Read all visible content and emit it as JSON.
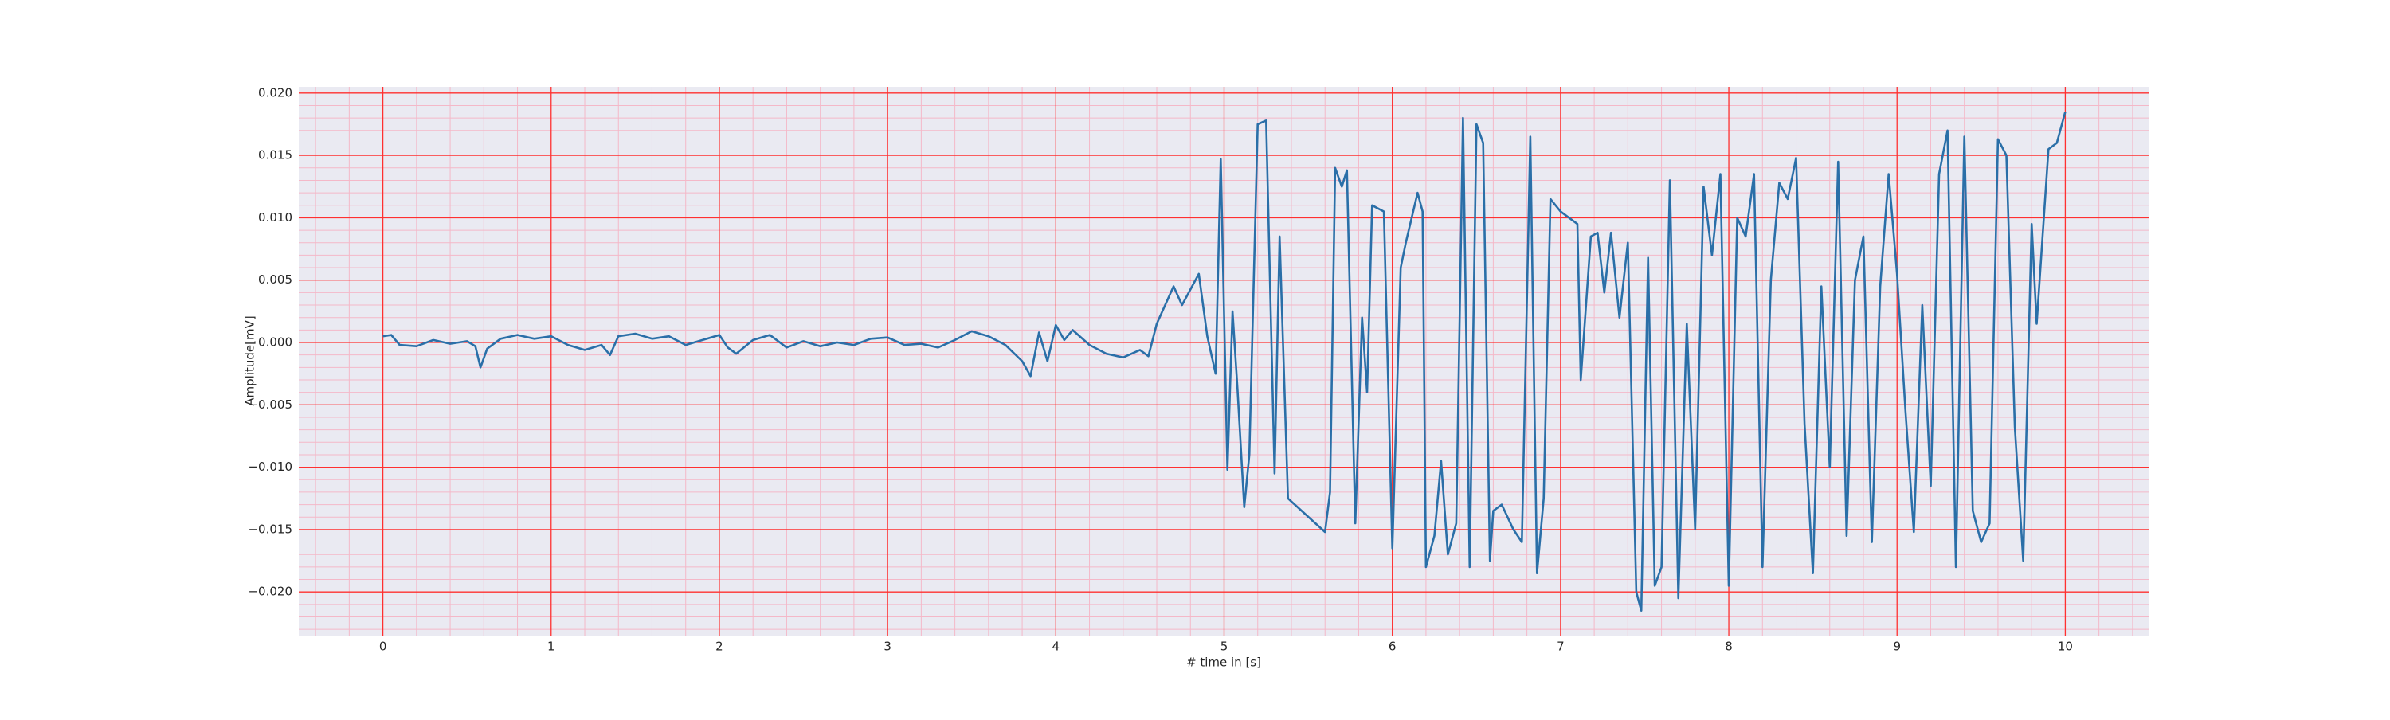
{
  "chart_data": {
    "type": "line",
    "xlabel": "# time in [s]",
    "ylabel": "Amplitude[mV]",
    "xlim": [
      -0.5,
      10.5
    ],
    "ylim": [
      -0.0235,
      0.0205
    ],
    "xticks": [
      0,
      1,
      2,
      3,
      4,
      5,
      6,
      7,
      8,
      9,
      10
    ],
    "yticks": [
      {
        "value": -0.02,
        "label": "−0.020"
      },
      {
        "value": -0.015,
        "label": "−0.015"
      },
      {
        "value": -0.01,
        "label": "−0.010"
      },
      {
        "value": -0.005,
        "label": "−0.005"
      },
      {
        "value": 0,
        "label": "0.000"
      },
      {
        "value": 0.005,
        "label": "0.005"
      },
      {
        "value": 0.01,
        "label": "0.010"
      },
      {
        "value": 0.015,
        "label": "0.015"
      },
      {
        "value": 0.02,
        "label": "0.020"
      }
    ],
    "xminorticks": [
      -0.4,
      -0.2,
      0.2,
      0.4,
      0.6,
      0.8,
      1.2,
      1.4,
      1.6,
      1.8,
      2.2,
      2.4,
      2.6,
      2.8,
      3.2,
      3.4,
      3.6,
      3.8,
      4.2,
      4.4,
      4.6,
      4.8,
      5.2,
      5.4,
      5.6,
      5.8,
      6.2,
      6.4,
      6.6,
      6.8,
      7.2,
      7.4,
      7.6,
      7.8,
      8.2,
      8.4,
      8.6,
      8.8,
      9.2,
      9.4,
      9.6,
      9.8,
      10.2,
      10.4
    ],
    "yminorticks": [
      -0.023,
      -0.022,
      -0.021,
      -0.019,
      -0.018,
      -0.017,
      -0.016,
      -0.014,
      -0.013,
      -0.012,
      -0.011,
      -0.009,
      -0.008,
      -0.007,
      -0.006,
      -0.004,
      -0.003,
      -0.002,
      -0.001,
      0.001,
      0.002,
      0.003,
      0.004,
      0.006,
      0.007,
      0.008,
      0.009,
      0.011,
      0.012,
      0.013,
      0.014,
      0.016,
      0.017,
      0.018,
      0.019
    ],
    "grid": true,
    "background": "#eaeaf2",
    "major_grid_color": "#ff3030",
    "minor_grid_color": "#f4b8c8",
    "x": [
      0,
      0.05,
      0.1,
      0.2,
      0.3,
      0.4,
      0.5,
      0.55,
      0.58,
      0.62,
      0.7,
      0.8,
      0.9,
      1.0,
      1.1,
      1.2,
      1.3,
      1.35,
      1.4,
      1.5,
      1.6,
      1.7,
      1.8,
      1.9,
      2.0,
      2.05,
      2.1,
      2.2,
      2.3,
      2.4,
      2.5,
      2.6,
      2.7,
      2.8,
      2.9,
      3.0,
      3.1,
      3.2,
      3.3,
      3.4,
      3.5,
      3.6,
      3.7,
      3.8,
      3.85,
      3.9,
      3.95,
      4.0,
      4.05,
      4.1,
      4.2,
      4.3,
      4.4,
      4.5,
      4.55,
      4.6,
      4.7,
      4.75,
      4.85,
      4.9,
      4.95,
      4.98,
      5.02,
      5.05,
      5.08,
      5.12,
      5.15,
      5.2,
      5.25,
      5.3,
      5.33,
      5.38,
      5.6,
      5.63,
      5.66,
      5.7,
      5.73,
      5.78,
      5.82,
      5.85,
      5.88,
      5.95,
      6.0,
      6.05,
      6.08,
      6.15,
      6.18,
      6.2,
      6.25,
      6.29,
      6.33,
      6.38,
      6.42,
      6.46,
      6.5,
      6.54,
      6.58,
      6.6,
      6.65,
      6.72,
      6.77,
      6.82,
      6.86,
      6.9,
      6.94,
      7.0,
      7.1,
      7.12,
      7.18,
      7.22,
      7.26,
      7.3,
      7.35,
      7.4,
      7.45,
      7.48,
      7.52,
      7.56,
      7.6,
      7.65,
      7.7,
      7.75,
      7.8,
      7.85,
      7.9,
      7.95,
      8.0,
      8.05,
      8.1,
      8.15,
      8.2,
      8.25,
      8.3,
      8.35,
      8.4,
      8.45,
      8.5,
      8.55,
      8.6,
      8.65,
      8.7,
      8.75,
      8.8,
      8.85,
      8.9,
      8.95,
      9.0,
      9.05,
      9.1,
      9.15,
      9.2,
      9.25,
      9.3,
      9.35,
      9.4,
      9.45,
      9.5,
      9.55,
      9.6,
      9.65,
      9.7,
      9.75,
      9.8,
      9.83,
      9.9,
      9.95,
      10.0
    ],
    "series": [
      {
        "color": "#2a6fa8",
        "values": [
          0.0005,
          0.0006,
          -0.0002,
          -0.0003,
          0.0002,
          -0.0001,
          0.0001,
          -0.0003,
          -0.002,
          -0.0005,
          0.0003,
          0.0006,
          0.0003,
          0.0005,
          -0.0002,
          -0.0006,
          -0.0002,
          -0.001,
          0.0005,
          0.0007,
          0.0003,
          0.0005,
          -0.0002,
          0.0002,
          0.0006,
          -0.0004,
          -0.0009,
          0.0002,
          0.0006,
          -0.0004,
          0.0001,
          -0.0003,
          0,
          -0.0002,
          0.0003,
          0.0004,
          -0.0002,
          -0.0001,
          -0.0004,
          0.0002,
          0.0009,
          0.0005,
          -0.0002,
          -0.0015,
          -0.0027,
          0.0008,
          -0.0015,
          0.0014,
          0.0002,
          0.001,
          -0.0002,
          -0.0009,
          -0.0012,
          -0.0006,
          -0.0011,
          0.0015,
          0.0045,
          0.003,
          0.0055,
          0.0005,
          -0.0025,
          0.0147,
          -0.0102,
          0.0025,
          -0.0038,
          -0.0132,
          -0.009,
          0.0175,
          0.0178,
          -0.0105,
          0.0085,
          -0.0125,
          -0.0152,
          -0.012,
          0.014,
          0.0125,
          0.0138,
          -0.0145,
          0.002,
          -0.004,
          0.011,
          0.0105,
          -0.0165,
          0.006,
          0.008,
          0.012,
          0.0105,
          -0.018,
          -0.0155,
          -0.0095,
          -0.017,
          -0.0145,
          0.018,
          -0.018,
          0.0175,
          0.016,
          -0.0175,
          -0.0135,
          -0.013,
          -0.015,
          -0.016,
          0.0165,
          -0.0185,
          -0.0125,
          0.0115,
          0.0105,
          0.0095,
          -0.003,
          0.0085,
          0.0088,
          0.004,
          0.0088,
          0.002,
          0.008,
          -0.02,
          -0.0215,
          0.0068,
          -0.0195,
          -0.018,
          0.013,
          -0.0205,
          0.0015,
          -0.015,
          0.0125,
          0.007,
          0.0135,
          -0.0195,
          0.01,
          0.0085,
          0.0135,
          -0.018,
          0.005,
          0.0128,
          0.0115,
          0.0148,
          -0.0065,
          -0.0185,
          0.0045,
          -0.01,
          0.0145,
          -0.0155,
          0.005,
          0.0085,
          -0.016,
          0.0045,
          0.0135,
          0.0055,
          -0.0055,
          -0.0152,
          0.003,
          -0.0115,
          0.0135,
          0.017,
          -0.018,
          0.0165,
          -0.0135,
          -0.016,
          -0.0145,
          0.0163,
          0.015,
          -0.0068,
          -0.0175,
          0.0095,
          0.0015,
          0.0155,
          0.016,
          0.0185
        ]
      }
    ]
  }
}
